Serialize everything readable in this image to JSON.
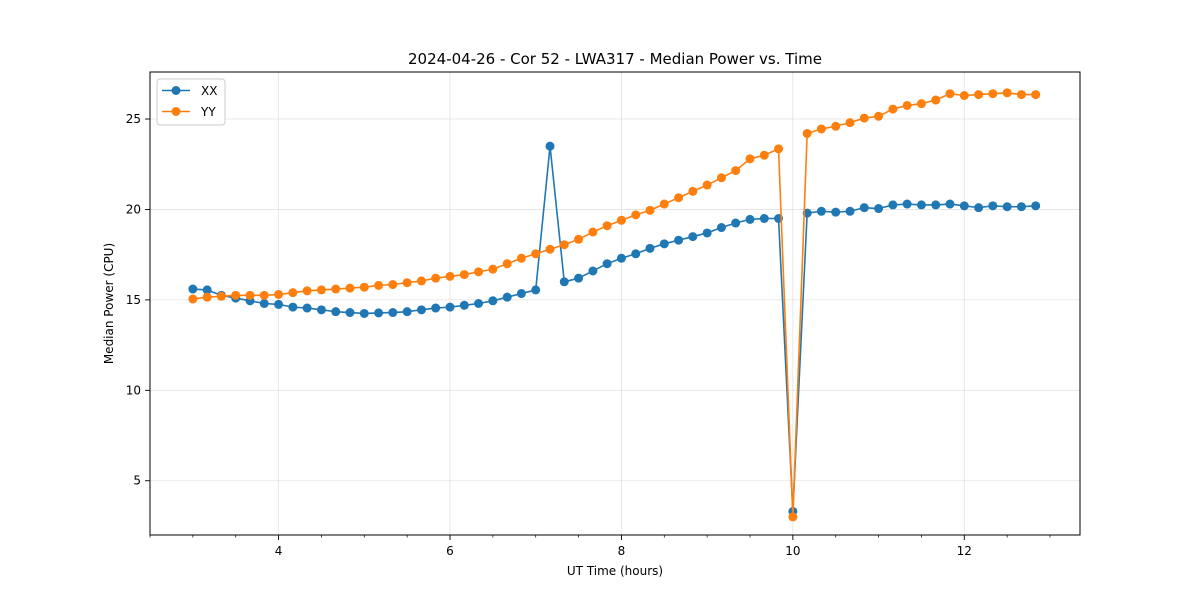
{
  "chart_data": {
    "type": "line",
    "title": "2024-04-26 - Cor 52 - LWA317 - Median Power vs. Time",
    "xlabel": "UT Time (hours)",
    "ylabel": "Median Power (CPU)",
    "xlim": [
      2.5,
      13.35
    ],
    "ylim": [
      2.0,
      27.6
    ],
    "xticks": [
      4,
      6,
      8,
      10,
      12
    ],
    "yticks": [
      5,
      10,
      15,
      20,
      25
    ],
    "grid": true,
    "legend_position": "top-left",
    "x": [
      3.0,
      3.167,
      3.333,
      3.5,
      3.667,
      3.833,
      4.0,
      4.167,
      4.333,
      4.5,
      4.667,
      4.833,
      5.0,
      5.167,
      5.333,
      5.5,
      5.667,
      5.833,
      6.0,
      6.167,
      6.333,
      6.5,
      6.667,
      6.833,
      7.0,
      7.167,
      7.333,
      7.5,
      7.667,
      7.833,
      8.0,
      8.167,
      8.333,
      8.5,
      8.667,
      8.833,
      9.0,
      9.167,
      9.333,
      9.5,
      9.667,
      9.833,
      10.0,
      10.167,
      10.333,
      10.5,
      10.667,
      10.833,
      11.0,
      11.167,
      11.333,
      11.5,
      11.667,
      11.833,
      12.0,
      12.167,
      12.333,
      12.5,
      12.667,
      12.833
    ],
    "series": [
      {
        "name": "XX",
        "color": "#1f77b4",
        "values": [
          15.6,
          15.55,
          15.25,
          15.1,
          14.95,
          14.8,
          14.75,
          14.6,
          14.55,
          14.45,
          14.35,
          14.3,
          14.25,
          14.28,
          14.3,
          14.35,
          14.45,
          14.55,
          14.6,
          14.7,
          14.8,
          14.95,
          15.15,
          15.35,
          15.55,
          23.5,
          16.0,
          16.2,
          16.6,
          17.0,
          17.3,
          17.55,
          17.85,
          18.1,
          18.3,
          18.5,
          18.7,
          19.0,
          19.25,
          19.45,
          19.5,
          19.5,
          3.3,
          19.8,
          19.9,
          19.85,
          19.9,
          20.1,
          20.05,
          20.25,
          20.3,
          20.25,
          20.25,
          20.3,
          20.2,
          20.1,
          20.2,
          20.15,
          20.15,
          20.2
        ]
      },
      {
        "name": "YY",
        "color": "#ff7f0e",
        "values": [
          15.05,
          15.15,
          15.2,
          15.25,
          15.25,
          15.25,
          15.3,
          15.4,
          15.5,
          15.55,
          15.6,
          15.65,
          15.7,
          15.8,
          15.85,
          15.95,
          16.05,
          16.2,
          16.3,
          16.4,
          16.55,
          16.7,
          17.0,
          17.3,
          17.55,
          17.8,
          18.05,
          18.35,
          18.75,
          19.1,
          19.4,
          19.7,
          19.95,
          20.3,
          20.65,
          21.0,
          21.35,
          21.75,
          22.15,
          22.8,
          23.0,
          23.35,
          3.0,
          24.2,
          24.45,
          24.6,
          24.8,
          25.05,
          25.15,
          25.55,
          25.75,
          25.85,
          26.05,
          26.4,
          26.3,
          26.35,
          26.4,
          26.45,
          26.35,
          26.35
        ]
      }
    ]
  }
}
